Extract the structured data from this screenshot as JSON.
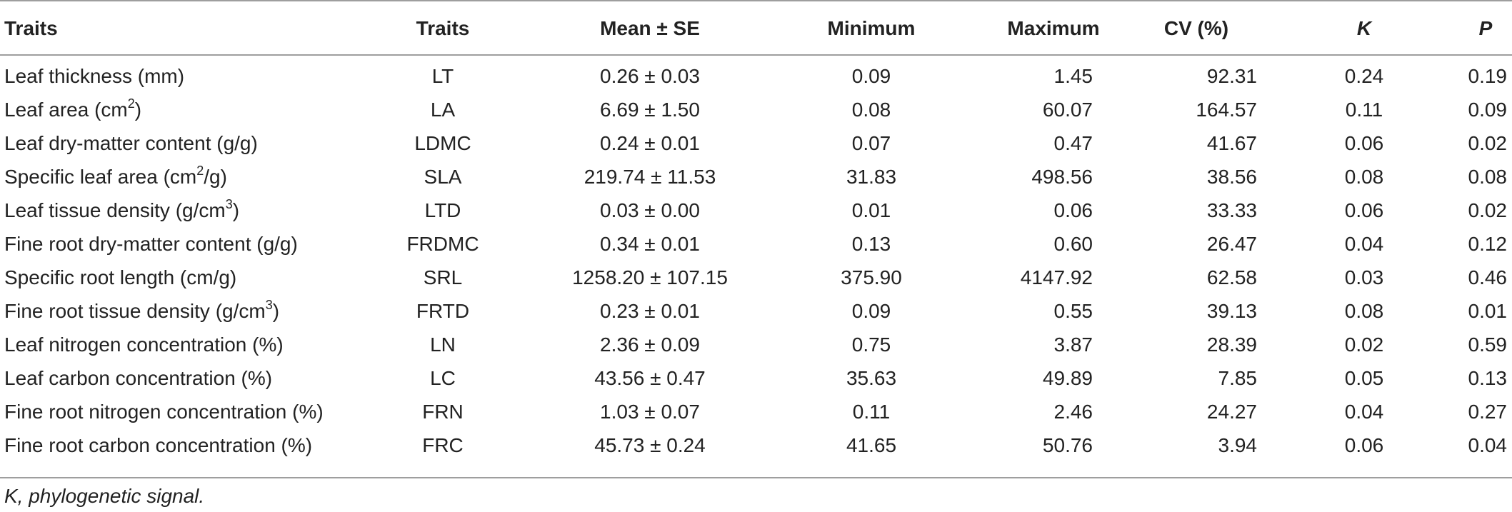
{
  "table": {
    "headers": {
      "trait": "Traits",
      "abbr": "Traits",
      "mean": "Mean ± SE",
      "min": "Minimum",
      "max": "Maximum",
      "cv": "CV (%)",
      "k": "K",
      "p": "P"
    },
    "rows": [
      {
        "trait": "Leaf thickness (mm)",
        "trait_sup": "",
        "trait_after": "",
        "abbr": "LT",
        "mean": "0.26 ± 0.03",
        "min": "0.09",
        "max": "1.45",
        "cv": "92.31",
        "k": "0.24",
        "p": "0.19"
      },
      {
        "trait": "Leaf area (cm",
        "trait_sup": "2",
        "trait_after": ")",
        "abbr": "LA",
        "mean": "6.69 ± 1.50",
        "min": "0.08",
        "max": "60.07",
        "cv": "164.57",
        "k": "0.11",
        "p": "0.09"
      },
      {
        "trait": "Leaf dry-matter content (g/g)",
        "trait_sup": "",
        "trait_after": "",
        "abbr": "LDMC",
        "mean": "0.24 ± 0.01",
        "min": "0.07",
        "max": "0.47",
        "cv": "41.67",
        "k": "0.06",
        "p": "0.02"
      },
      {
        "trait": "Specific leaf area (cm",
        "trait_sup": "2",
        "trait_after": "/g)",
        "abbr": "SLA",
        "mean": "219.74 ± 11.53",
        "min": "31.83",
        "max": "498.56",
        "cv": "38.56",
        "k": "0.08",
        "p": "0.08"
      },
      {
        "trait": "Leaf tissue density (g/cm",
        "trait_sup": "3",
        "trait_after": ")",
        "abbr": "LTD",
        "mean": "0.03 ± 0.00",
        "min": "0.01",
        "max": "0.06",
        "cv": "33.33",
        "k": "0.06",
        "p": "0.02"
      },
      {
        "trait": "Fine root dry-matter content (g/g)",
        "trait_sup": "",
        "trait_after": "",
        "abbr": "FRDMC",
        "mean": "0.34 ± 0.01",
        "min": "0.13",
        "max": "0.60",
        "cv": "26.47",
        "k": "0.04",
        "p": "0.12"
      },
      {
        "trait": "Specific root length (cm/g)",
        "trait_sup": "",
        "trait_after": "",
        "abbr": "SRL",
        "mean": "1258.20 ± 107.15",
        "min": "375.90",
        "max": "4147.92",
        "cv": "62.58",
        "k": "0.03",
        "p": "0.46"
      },
      {
        "trait": "Fine root tissue density (g/cm",
        "trait_sup": "3",
        "trait_after": ")",
        "abbr": "FRTD",
        "mean": "0.23 ± 0.01",
        "min": "0.09",
        "max": "0.55",
        "cv": "39.13",
        "k": "0.08",
        "p": "0.01"
      },
      {
        "trait": "Leaf nitrogen concentration (%)",
        "trait_sup": "",
        "trait_after": "",
        "abbr": "LN",
        "mean": "2.36 ± 0.09",
        "min": "0.75",
        "max": "3.87",
        "cv": "28.39",
        "k": "0.02",
        "p": "0.59"
      },
      {
        "trait": "Leaf carbon concentration (%)",
        "trait_sup": "",
        "trait_after": "",
        "abbr": "LC",
        "mean": "43.56 ± 0.47",
        "min": "35.63",
        "max": "49.89",
        "cv": "7.85",
        "k": "0.05",
        "p": "0.13"
      },
      {
        "trait": "Fine root nitrogen concentration (%)",
        "trait_sup": "",
        "trait_after": "",
        "abbr": "FRN",
        "mean": "1.03 ± 0.07",
        "min": "0.11",
        "max": "2.46",
        "cv": "24.27",
        "k": "0.04",
        "p": "0.27"
      },
      {
        "trait": "Fine root carbon concentration (%)",
        "trait_sup": "",
        "trait_after": "",
        "abbr": "FRC",
        "mean": "45.73 ± 0.24",
        "min": "41.65",
        "max": "50.76",
        "cv": "3.94",
        "k": "0.06",
        "p": "0.04"
      }
    ]
  },
  "footnote": "K, phylogenetic signal."
}
